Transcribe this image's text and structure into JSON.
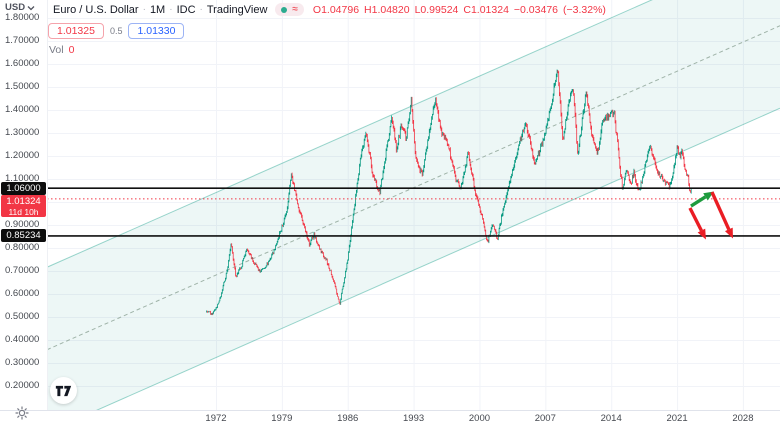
{
  "header": {
    "currency_button": "USD",
    "symbol_title": "Euro / U.S. Dollar",
    "separator": "·",
    "interval": "1M",
    "exchange": "IDC",
    "provider": "TradingView",
    "status_approx": "≈",
    "ohlc": {
      "o": "O1.04796",
      "h": "H1.04820",
      "l": "L0.99524",
      "c": "C1.01324",
      "change": "−0.03476",
      "change_pct": "(−3.32%)"
    },
    "sell_price": "1.01325",
    "spread": "0.5",
    "buy_price": "1.01330",
    "vol_label": "Vol",
    "vol_value": "0"
  },
  "price_scale": {
    "labels": [
      "1.80000",
      "1.70000",
      "1.60000",
      "1.50000",
      "1.40000",
      "1.30000",
      "1.20000",
      "1.10000",
      "1.00000",
      "0.90000",
      "0.80000",
      "0.70000",
      "0.60000",
      "0.50000",
      "0.40000",
      "0.30000",
      "0.20000"
    ],
    "pill_upper": "1.06000",
    "pill_current": "1.01324",
    "pill_countdown": "11d 10h",
    "pill_lower": "0.85234"
  },
  "time_scale": {
    "labels": [
      "1972",
      "1979",
      "1986",
      "1993",
      "2000",
      "2007",
      "2014",
      "2021",
      "2028"
    ]
  },
  "chart_data": {
    "type": "candlestick",
    "title": "Euro / U.S. Dollar · 1M · IDC · TradingView",
    "symbol": "EURUSD",
    "interval": "1M",
    "legend_position": "top-left",
    "grid": true,
    "domain": {
      "year_min": 1954.04,
      "year_max": 2031.94,
      "price_min": 0.0955,
      "price_max": 1.878
    },
    "price_grid": {
      "start": 0.2,
      "end": 1.8,
      "step": 0.1
    },
    "x_ticks": [
      1972,
      1979,
      1986,
      1993,
      2000,
      2007,
      2014,
      2021,
      2028
    ],
    "series_start": 1971.0,
    "series_end": 2022.583,
    "last_bar": {
      "open": 1.04796,
      "high": 1.0482,
      "low": 0.99524,
      "close": 1.01324
    },
    "anchors": [
      [
        1971.0,
        0.525
      ],
      [
        1971.6,
        0.512
      ],
      [
        1972.3,
        0.56
      ],
      [
        1972.8,
        0.64
      ],
      [
        1973.2,
        0.7
      ],
      [
        1973.6,
        0.825
      ],
      [
        1974.1,
        0.675
      ],
      [
        1974.7,
        0.72
      ],
      [
        1975.3,
        0.8
      ],
      [
        1976.0,
        0.74
      ],
      [
        1976.7,
        0.695
      ],
      [
        1977.5,
        0.735
      ],
      [
        1978.3,
        0.8
      ],
      [
        1978.9,
        0.88
      ],
      [
        1979.5,
        0.95
      ],
      [
        1980.0,
        1.13
      ],
      [
        1980.6,
        1.0
      ],
      [
        1981.2,
        0.92
      ],
      [
        1981.9,
        0.815
      ],
      [
        1982.4,
        0.86
      ],
      [
        1983.0,
        0.8
      ],
      [
        1983.8,
        0.74
      ],
      [
        1984.5,
        0.66
      ],
      [
        1985.15,
        0.555
      ],
      [
        1986.0,
        0.75
      ],
      [
        1986.6,
        0.95
      ],
      [
        1987.3,
        1.17
      ],
      [
        1987.95,
        1.31
      ],
      [
        1988.6,
        1.13
      ],
      [
        1989.4,
        1.04
      ],
      [
        1989.9,
        1.17
      ],
      [
        1990.7,
        1.37
      ],
      [
        1991.2,
        1.22
      ],
      [
        1991.7,
        1.34
      ],
      [
        1992.2,
        1.28
      ],
      [
        1992.75,
        1.44
      ],
      [
        1993.2,
        1.19
      ],
      [
        1993.9,
        1.12
      ],
      [
        1994.5,
        1.26
      ],
      [
        1995.3,
        1.45
      ],
      [
        1995.9,
        1.31
      ],
      [
        1996.6,
        1.26
      ],
      [
        1997.5,
        1.1
      ],
      [
        1998.0,
        1.06
      ],
      [
        1998.8,
        1.21
      ],
      [
        1999.5,
        1.05
      ],
      [
        2000.2,
        0.95
      ],
      [
        2000.85,
        0.825
      ],
      [
        2001.4,
        0.9
      ],
      [
        2001.9,
        0.84
      ],
      [
        2002.5,
        0.97
      ],
      [
        2003.2,
        1.08
      ],
      [
        2003.9,
        1.2
      ],
      [
        2004.9,
        1.355
      ],
      [
        2005.85,
        1.165
      ],
      [
        2006.9,
        1.28
      ],
      [
        2007.6,
        1.42
      ],
      [
        2008.3,
        1.595
      ],
      [
        2008.85,
        1.26
      ],
      [
        2009.4,
        1.41
      ],
      [
        2009.95,
        1.5
      ],
      [
        2010.45,
        1.2
      ],
      [
        2010.8,
        1.32
      ],
      [
        2011.35,
        1.48
      ],
      [
        2011.9,
        1.3
      ],
      [
        2012.55,
        1.21
      ],
      [
        2013.1,
        1.36
      ],
      [
        2014.3,
        1.39
      ],
      [
        2015.2,
        1.05
      ],
      [
        2015.6,
        1.14
      ],
      [
        2016.1,
        1.08
      ],
      [
        2016.4,
        1.13
      ],
      [
        2016.95,
        1.04
      ],
      [
        2017.5,
        1.14
      ],
      [
        2018.1,
        1.25
      ],
      [
        2018.9,
        1.13
      ],
      [
        2019.7,
        1.09
      ],
      [
        2020.2,
        1.065
      ],
      [
        2020.6,
        1.13
      ],
      [
        2021.0,
        1.235
      ],
      [
        2021.35,
        1.2
      ],
      [
        2021.55,
        1.22
      ],
      [
        2021.9,
        1.13
      ],
      [
        2022.2,
        1.1
      ],
      [
        2022.35,
        1.045
      ],
      [
        2022.5,
        1.048
      ]
    ],
    "channel": {
      "year_start": 1954.04,
      "mid_price_start": 0.3575,
      "year_end": 2031.94,
      "mid_price_end": 1.7661,
      "half_width": 0.3587
    },
    "hlines": [
      {
        "price": 1.06,
        "label": "1.06000"
      },
      {
        "price": 0.85234,
        "label": "0.85234"
      }
    ],
    "current_price": 1.01324,
    "arrows": [
      {
        "from": [
          2022.37,
          0.9737
        ],
        "to": [
          2024.07,
          0.8367
        ],
        "dir": "down"
      },
      {
        "from": [
          2022.48,
          0.9824
        ],
        "to": [
          2024.92,
          1.0454
        ],
        "dir": "up"
      },
      {
        "from": [
          2024.71,
          1.0432
        ],
        "to": [
          2026.94,
          0.8411
        ],
        "dir": "down"
      }
    ],
    "colors": {
      "up": "#089981",
      "down": "#f23645",
      "channel_line": "rgba(8,153,129,0.40)",
      "channel_fill": "rgba(8,153,129,0.075)",
      "channel_mid": "#9fb3a8",
      "hline": "#111111",
      "current_line": "#f23645",
      "arrow_up": "#1e9b3e",
      "arrow_down": "#ea1d24",
      "grid": "#f1f3f8"
    }
  }
}
